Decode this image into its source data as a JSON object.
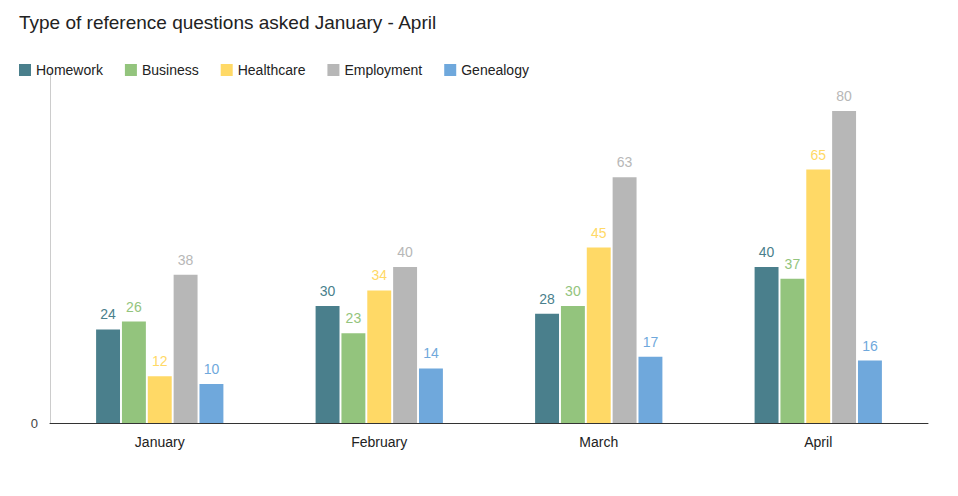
{
  "chart_data": {
    "type": "bar",
    "title": "Type of reference questions asked January - April",
    "categories": [
      "January",
      "February",
      "March",
      "April"
    ],
    "series": [
      {
        "name": "Homework",
        "color": "#4a7f8c",
        "values": [
          24,
          30,
          28,
          40
        ]
      },
      {
        "name": "Business",
        "color": "#93c47d",
        "values": [
          26,
          23,
          30,
          37
        ]
      },
      {
        "name": "Healthcare",
        "color": "#ffd966",
        "values": [
          12,
          34,
          45,
          65
        ]
      },
      {
        "name": "Employment",
        "color": "#b7b7b7",
        "values": [
          38,
          40,
          63,
          80
        ]
      },
      {
        "name": "Genealogy",
        "color": "#6fa8dc",
        "values": [
          10,
          14,
          17,
          16
        ]
      }
    ],
    "ylim": [
      0,
      90
    ],
    "yticks": [
      0
    ],
    "grid": false,
    "legend": "top-left",
    "data_labels": true
  }
}
